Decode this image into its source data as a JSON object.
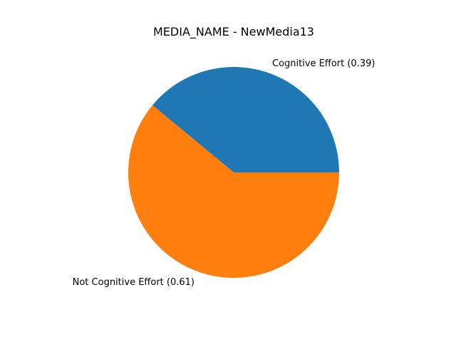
{
  "chart_data": {
    "type": "pie",
    "title": "MEDIA_NAME - NewMedia13",
    "slices": [
      {
        "label": "Cognitive Effort (0.39)",
        "value": 0.39,
        "color": "#1f77b4"
      },
      {
        "label": "Not Cognitive Effort (0.61)",
        "value": 0.61,
        "color": "#ff7f0e"
      }
    ],
    "start_angle_deg": 0,
    "direction": "counterclockwise",
    "legend": "none"
  }
}
